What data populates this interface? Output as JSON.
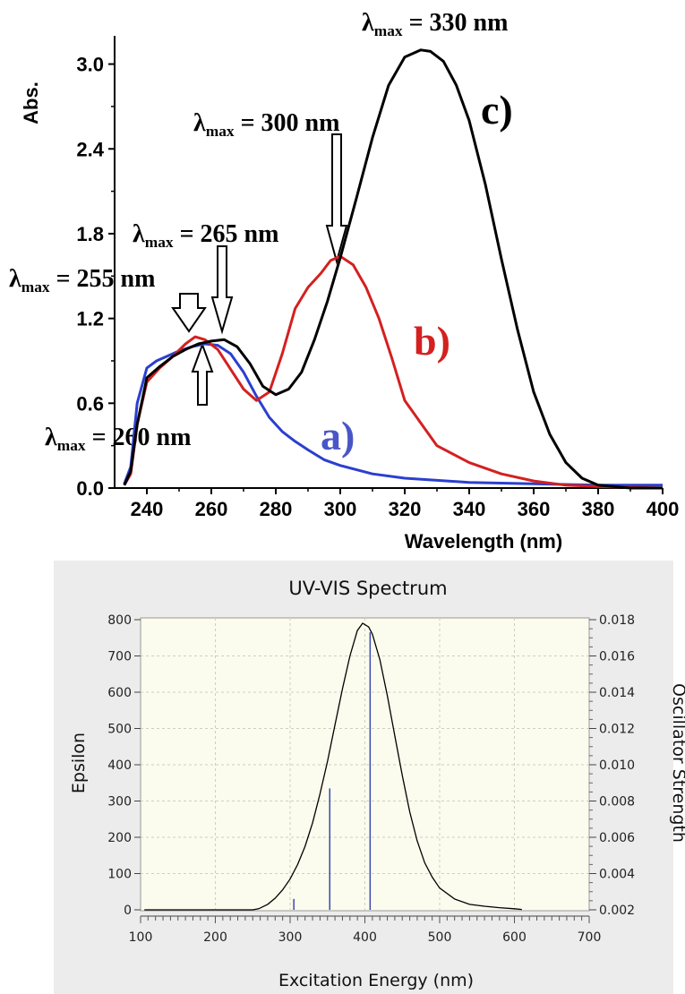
{
  "chart_data": [
    {
      "type": "line",
      "title": "",
      "xlabel": "Wavelength (nm)",
      "ylabel": "Abs.",
      "xlim": [
        230,
        400
      ],
      "ylim": [
        0,
        3.2
      ],
      "x_ticks": [
        "240",
        "260",
        "280",
        "300",
        "320",
        "340",
        "360",
        "380",
        "400"
      ],
      "y_ticks": [
        "0.0",
        "0.6",
        "1.2",
        "1.8",
        "2.4",
        "3.0"
      ],
      "series": [
        {
          "name": "a)",
          "color": "#2b3fcf",
          "x": [
            233,
            235,
            237,
            240,
            243,
            246,
            250,
            254,
            258,
            262,
            266,
            270,
            274,
            278,
            282,
            286,
            290,
            295,
            300,
            310,
            320,
            340,
            360,
            380,
            400
          ],
          "y": [
            0.03,
            0.15,
            0.6,
            0.85,
            0.9,
            0.93,
            0.97,
            1.0,
            1.02,
            1.01,
            0.95,
            0.82,
            0.65,
            0.5,
            0.4,
            0.33,
            0.27,
            0.2,
            0.16,
            0.1,
            0.07,
            0.04,
            0.03,
            0.02,
            0.02
          ]
        },
        {
          "name": "b)",
          "color": "#d42020",
          "x": [
            233,
            235,
            237,
            240,
            244,
            248,
            252,
            255,
            258,
            262,
            266,
            270,
            274,
            278,
            282,
            286,
            290,
            294,
            297,
            300,
            304,
            308,
            312,
            316,
            320,
            330,
            340,
            350,
            360,
            370,
            380,
            400
          ],
          "y": [
            0.02,
            0.1,
            0.45,
            0.75,
            0.85,
            0.93,
            1.02,
            1.07,
            1.05,
            0.98,
            0.84,
            0.7,
            0.62,
            0.68,
            0.95,
            1.27,
            1.42,
            1.52,
            1.61,
            1.64,
            1.58,
            1.42,
            1.2,
            0.92,
            0.62,
            0.3,
            0.18,
            0.1,
            0.05,
            0.02,
            0.01,
            0.0
          ]
        },
        {
          "name": "c)",
          "color": "#000000",
          "x": [
            233,
            235,
            237,
            240,
            244,
            248,
            252,
            256,
            260,
            264,
            268,
            272,
            276,
            280,
            284,
            288,
            292,
            296,
            300,
            305,
            310,
            315,
            320,
            325,
            328,
            332,
            336,
            340,
            345,
            350,
            355,
            360,
            365,
            370,
            375,
            380,
            390,
            400
          ],
          "y": [
            0.02,
            0.12,
            0.45,
            0.78,
            0.86,
            0.93,
            0.98,
            1.02,
            1.04,
            1.05,
            1.0,
            0.88,
            0.72,
            0.66,
            0.7,
            0.82,
            1.05,
            1.32,
            1.63,
            2.05,
            2.48,
            2.85,
            3.05,
            3.1,
            3.09,
            3.02,
            2.85,
            2.6,
            2.15,
            1.62,
            1.12,
            0.68,
            0.38,
            0.18,
            0.07,
            0.02,
            0.0,
            0.0
          ]
        }
      ],
      "annotations": {
        "lmax_330": "330 nm",
        "lmax_300": "300 nm",
        "lmax_265": "265 nm",
        "lmax_255": "255 nm",
        "lmax_260": "260 nm",
        "lambda": "λ",
        "sub": "max",
        "eq": "="
      },
      "series_labels": {
        "a": "a)",
        "b": "b)",
        "c": "c)"
      }
    },
    {
      "type": "line",
      "title": "UV-VIS Spectrum",
      "xlabel": "Excitation Energy (nm)",
      "ylabel": "Epsilon",
      "y2label": "Oscillator Strength",
      "xlim": [
        100,
        700
      ],
      "ylim": [
        0,
        800
      ],
      "y2lim": [
        0.002,
        0.018
      ],
      "x_ticks": [
        "100",
        "200",
        "300",
        "400",
        "500",
        "600",
        "700"
      ],
      "y_ticks": [
        "0",
        "100",
        "200",
        "300",
        "400",
        "500",
        "600",
        "700",
        "800"
      ],
      "y2_ticks": [
        "0.002",
        "0.004",
        "0.006",
        "0.008",
        "0.010",
        "0.012",
        "0.014",
        "0.016",
        "0.018"
      ],
      "grid": true,
      "curve": {
        "x": [
          105,
          200,
          250,
          258,
          270,
          280,
          290,
          300,
          310,
          320,
          330,
          340,
          350,
          360,
          370,
          380,
          390,
          397,
          405,
          410,
          420,
          430,
          440,
          450,
          460,
          470,
          480,
          490,
          500,
          520,
          540,
          560,
          580,
          600,
          610
        ],
        "y": [
          0,
          0,
          0,
          3,
          15,
          32,
          55,
          85,
          125,
          175,
          240,
          320,
          410,
          510,
          610,
          700,
          770,
          790,
          780,
          760,
          690,
          590,
          480,
          370,
          270,
          190,
          130,
          90,
          60,
          30,
          15,
          10,
          6,
          3,
          1
        ]
      },
      "sticks": [
        {
          "x": 305,
          "f": 0.0026
        },
        {
          "x": 353,
          "f": 0.0087
        },
        {
          "x": 407,
          "f": 0.0173
        }
      ],
      "colors": {
        "curve": "#000000",
        "stick": "#3a4ab0",
        "plot_bg": "#fbfbee",
        "panel_bg": "#ececec"
      }
    }
  ]
}
